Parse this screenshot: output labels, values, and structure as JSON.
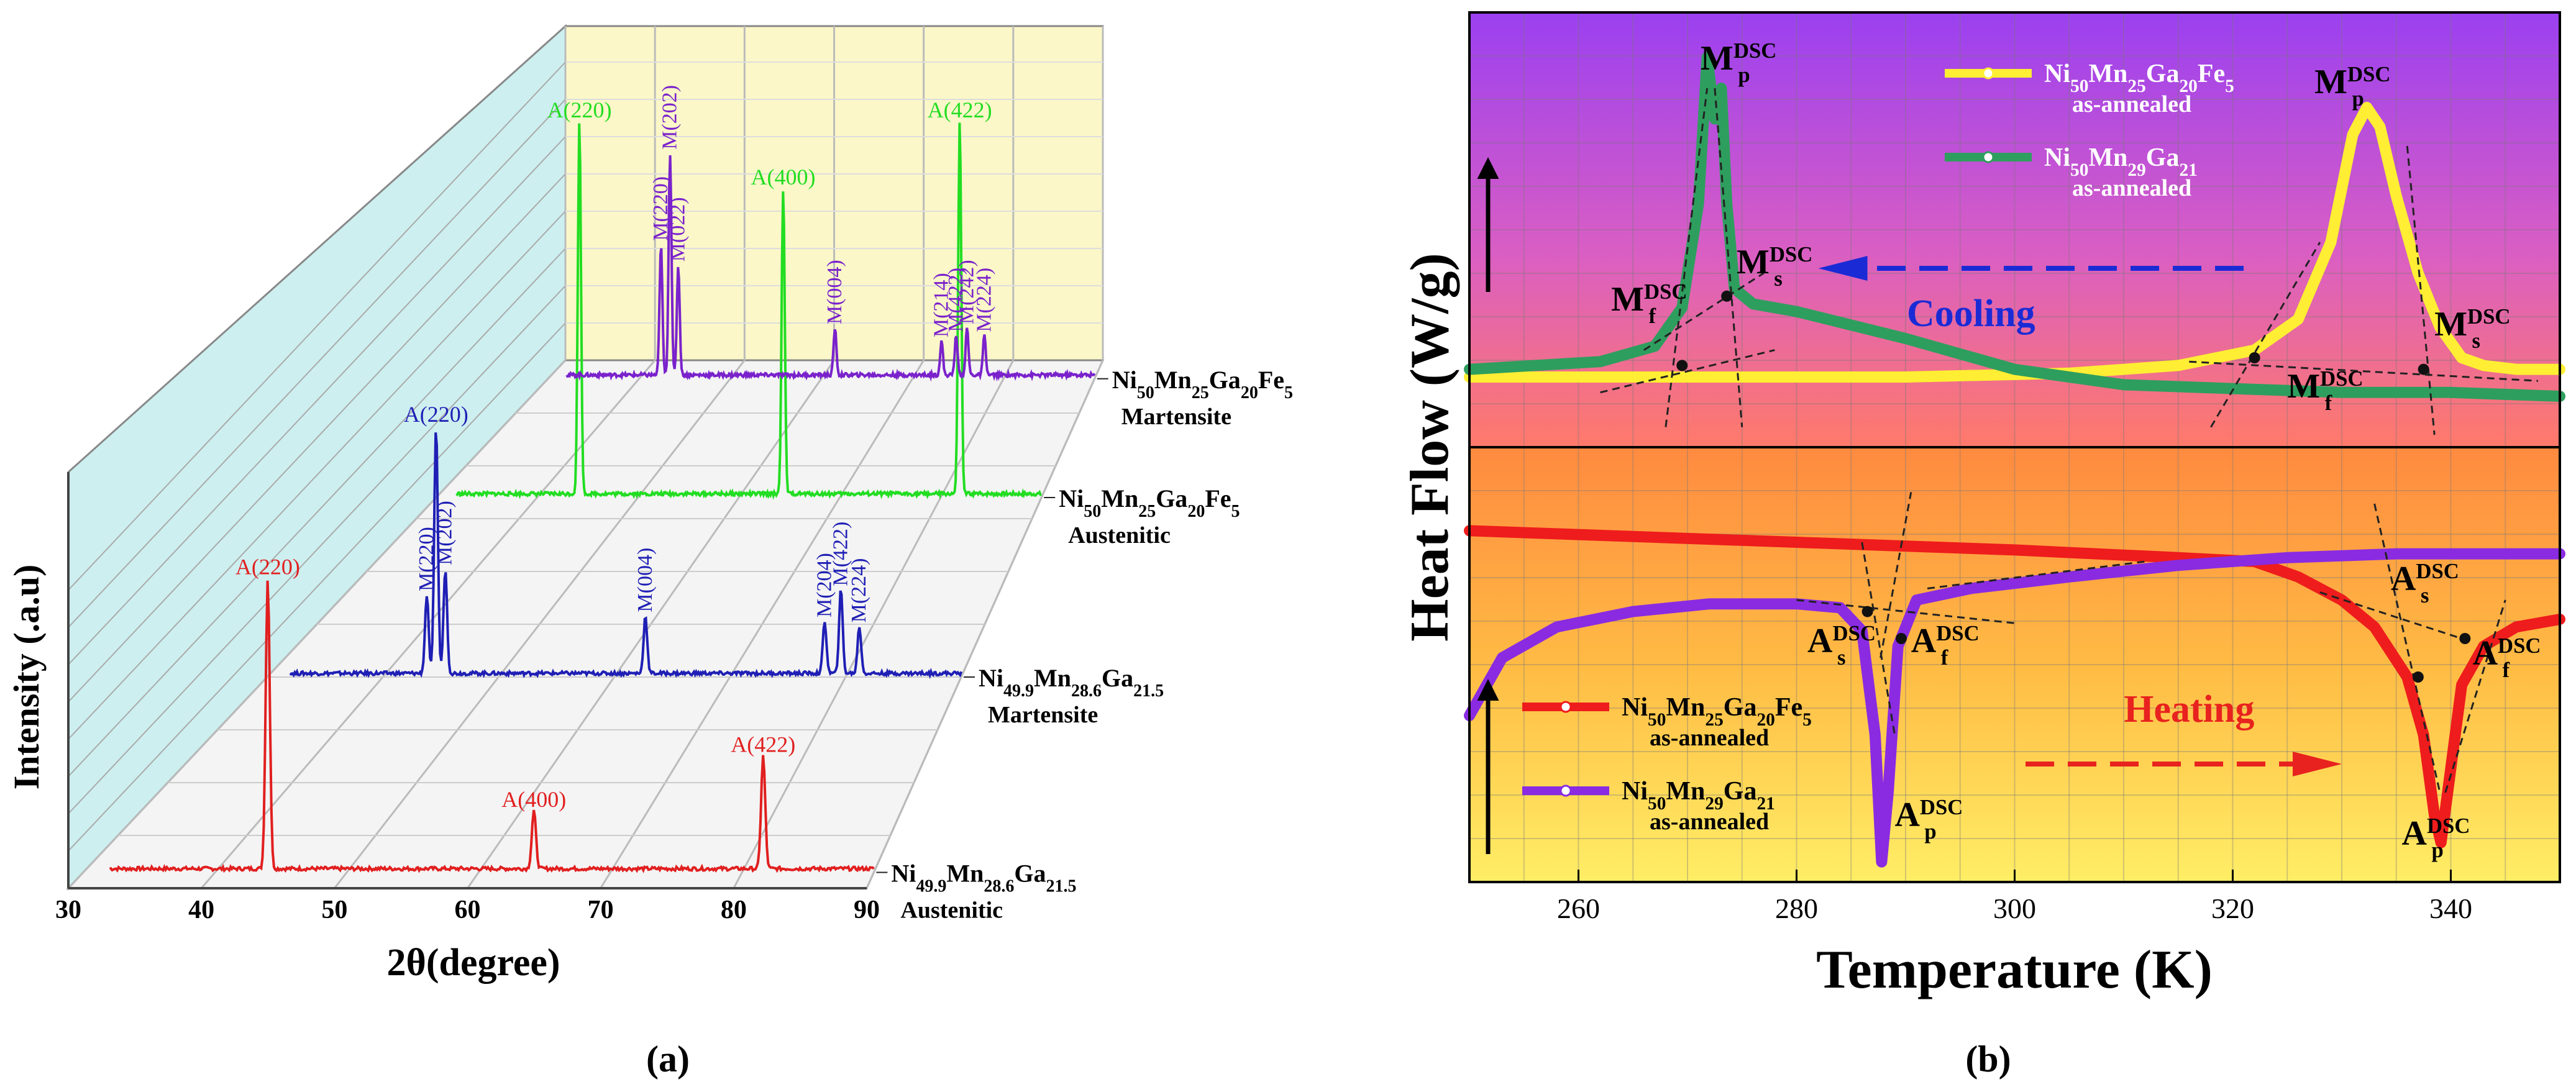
{
  "panel_labels": {
    "a": "(a)",
    "b": "(b)"
  },
  "chart_data": [
    {
      "type": "line",
      "subtype": "3d-waterfall-xrd",
      "xlabel": "2θ(degree)",
      "ylabel": "Intensity (.a.u)",
      "xticks": [
        30,
        40,
        50,
        60,
        70,
        80,
        90
      ],
      "xlim": [
        30,
        90
      ],
      "grid": true,
      "series": [
        {
          "key": "s4",
          "label_main": "Ni",
          "label_sub1": "49.9",
          "label_mid1": "Mn",
          "label_sub2": "28.6",
          "label_mid2": "Ga",
          "label_sub3": "21.5",
          "phase": "Austenitic",
          "color": "#e11f1f",
          "peaks": [
            {
              "label": "A(220)",
              "x": 44.0,
              "h": 0.9
            },
            {
              "label": "A(400)",
              "x": 64.2,
              "h": 0.18
            },
            {
              "label": "A(422)",
              "x": 81.6,
              "h": 0.35
            }
          ]
        },
        {
          "key": "s3",
          "label_main": "Ni",
          "label_sub1": "49.9",
          "label_mid1": "Mn",
          "label_sub2": "28.6",
          "label_mid2": "Ga",
          "label_sub3": "21.5",
          "phase": "Martensite",
          "color": "#1f1fb5",
          "peaks": [
            {
              "label": "M(220)",
              "x": 43.8,
              "h": 0.3
            },
            {
              "label": "A(220)",
              "x": 44.6,
              "h": 0.95
            },
            {
              "label": "M(202)",
              "x": 45.4,
              "h": 0.4
            },
            {
              "label": "M(004)",
              "x": 62.7,
              "h": 0.22
            },
            {
              "label": "M(204)",
              "x": 78.2,
              "h": 0.2
            },
            {
              "label": "M(422)",
              "x": 79.6,
              "h": 0.32
            },
            {
              "label": "M(224)",
              "x": 81.2,
              "h": 0.18
            }
          ]
        },
        {
          "key": "s2",
          "label_main": "Ni",
          "label_sub1": "50",
          "label_mid1": "Mn",
          "label_sub2": "25",
          "label_mid2": "Ga",
          "label_sub3": "20",
          "label_mid3": "Fe",
          "label_sub4": "5",
          "phase": "Austenitic",
          "color": "#22dd22",
          "peaks": [
            {
              "label": "A(220)",
              "x": 44.2,
              "h": 1.0
            },
            {
              "label": "A(400)",
              "x": 64.4,
              "h": 0.82
            },
            {
              "label": "A(422)",
              "x": 81.9,
              "h": 1.0
            }
          ]
        },
        {
          "key": "s1",
          "label_main": "Ni",
          "label_sub1": "50",
          "label_mid1": "Mn",
          "label_sub2": "25",
          "label_mid2": "Ga",
          "label_sub3": "20",
          "label_mid3": "Fe",
          "label_sub4": "5",
          "phase": "Martensite",
          "color": "#7a22cc",
          "peaks": [
            {
              "label": "M(220)",
              "x": 42.4,
              "h": 0.5
            },
            {
              "label": "M(202)",
              "x": 43.4,
              "h": 0.85
            },
            {
              "label": "M(022)",
              "x": 44.3,
              "h": 0.42
            },
            {
              "label": "M(004)",
              "x": 61.5,
              "h": 0.18
            },
            {
              "label": "M(214)",
              "x": 73.2,
              "h": 0.13
            },
            {
              "label": "M(422)",
              "x": 74.8,
              "h": 0.15
            },
            {
              "label": "M(242)",
              "x": 76.0,
              "h": 0.18
            },
            {
              "label": "M(224)",
              "x": 77.9,
              "h": 0.15
            }
          ]
        }
      ]
    },
    {
      "type": "line",
      "subtype": "dsc",
      "xlabel": "Temperature (K)",
      "ylabel": "Heat Flow (W/g)",
      "xticks": [
        260,
        280,
        300,
        320,
        340
      ],
      "xlim": [
        250,
        350
      ],
      "grid": true,
      "annotations": {
        "cooling": "Cooling",
        "heating": "Heating"
      },
      "labels": {
        "Mp": "M",
        "Mf": "M",
        "Ms": "M",
        "As": "A",
        "Af": "A",
        "Ap": "A",
        "sub_p": "p",
        "sub_f": "f",
        "sub_s": "s",
        "sup": "DSC"
      },
      "legend_cooling": [
        {
          "name_main": "Ni",
          "s1": "50",
          "m1": "Mn",
          "s2": "25",
          "m2": "Ga",
          "s3": "20",
          "m3": "Fe",
          "s4": "5",
          "note": "as-annealed",
          "color": "#ffee33"
        },
        {
          "name_main": "Ni",
          "s1": "50",
          "m1": "Mn",
          "s2": "29",
          "m2": "Ga",
          "s3": "21",
          "note": "as-annealed",
          "color": "#2e9e5e"
        }
      ],
      "legend_heating": [
        {
          "name_main": "Ni",
          "s1": "50",
          "m1": "Mn",
          "s2": "25",
          "m2": "Ga",
          "s3": "20",
          "m3": "Fe",
          "s4": "5",
          "note": "as-annealed",
          "color": "#ee1c1c"
        },
        {
          "name_main": "Ni",
          "s1": "50",
          "m1": "Mn",
          "s2": "29",
          "m2": "Ga",
          "s3": "21",
          "note": "as-annealed",
          "color": "#8a2be2"
        }
      ],
      "cooling_series": [
        {
          "name": "Ni50Mn25Ga20Fe5",
          "color": "#ffee33",
          "x": [
            250,
            270,
            290,
            305,
            315,
            322,
            326,
            329,
            331,
            332.3,
            333.5,
            335,
            337,
            339,
            341,
            343,
            346,
            350
          ],
          "y": [
            0.15,
            0.15,
            0.15,
            0.16,
            0.18,
            0.22,
            0.3,
            0.5,
            0.78,
            0.85,
            0.8,
            0.62,
            0.42,
            0.28,
            0.2,
            0.18,
            0.17,
            0.17
          ]
        },
        {
          "name": "Ni50Mn29Ga21",
          "color": "#2e9e5e",
          "x": [
            250,
            262,
            267,
            269.5,
            271,
            271.8,
            272.5,
            273.1,
            273.6,
            274.3,
            276,
            280,
            290,
            300,
            310,
            320,
            330,
            340,
            350
          ],
          "y": [
            0.17,
            0.19,
            0.23,
            0.33,
            0.6,
            0.98,
            0.82,
            0.9,
            0.6,
            0.38,
            0.34,
            0.32,
            0.25,
            0.17,
            0.13,
            0.12,
            0.11,
            0.11,
            0.1
          ]
        }
      ],
      "heating_series": [
        {
          "name": "Ni50Mn25Ga20Fe5",
          "color": "#ee1c1c",
          "x": [
            250,
            260,
            280,
            300,
            315,
            322,
            326,
            330,
            333,
            336,
            337.5,
            338.5,
            339.1,
            339.8,
            341,
            343,
            346,
            350
          ],
          "y": [
            0.88,
            0.87,
            0.85,
            0.83,
            0.81,
            0.8,
            0.76,
            0.7,
            0.63,
            0.5,
            0.35,
            0.14,
            0.07,
            0.22,
            0.48,
            0.58,
            0.63,
            0.65
          ]
        },
        {
          "name": "Ni50Mn29Ga21",
          "color": "#8a2be2",
          "x": [
            250,
            253,
            258,
            265,
            272,
            280,
            284,
            286,
            287.2,
            287.8,
            288.4,
            289.3,
            291,
            296,
            305,
            315,
            325,
            335,
            345,
            350
          ],
          "y": [
            0.4,
            0.55,
            0.63,
            0.67,
            0.69,
            0.69,
            0.68,
            0.62,
            0.35,
            0.02,
            0.2,
            0.58,
            0.7,
            0.73,
            0.76,
            0.79,
            0.81,
            0.82,
            0.82,
            0.82
          ]
        }
      ]
    }
  ]
}
